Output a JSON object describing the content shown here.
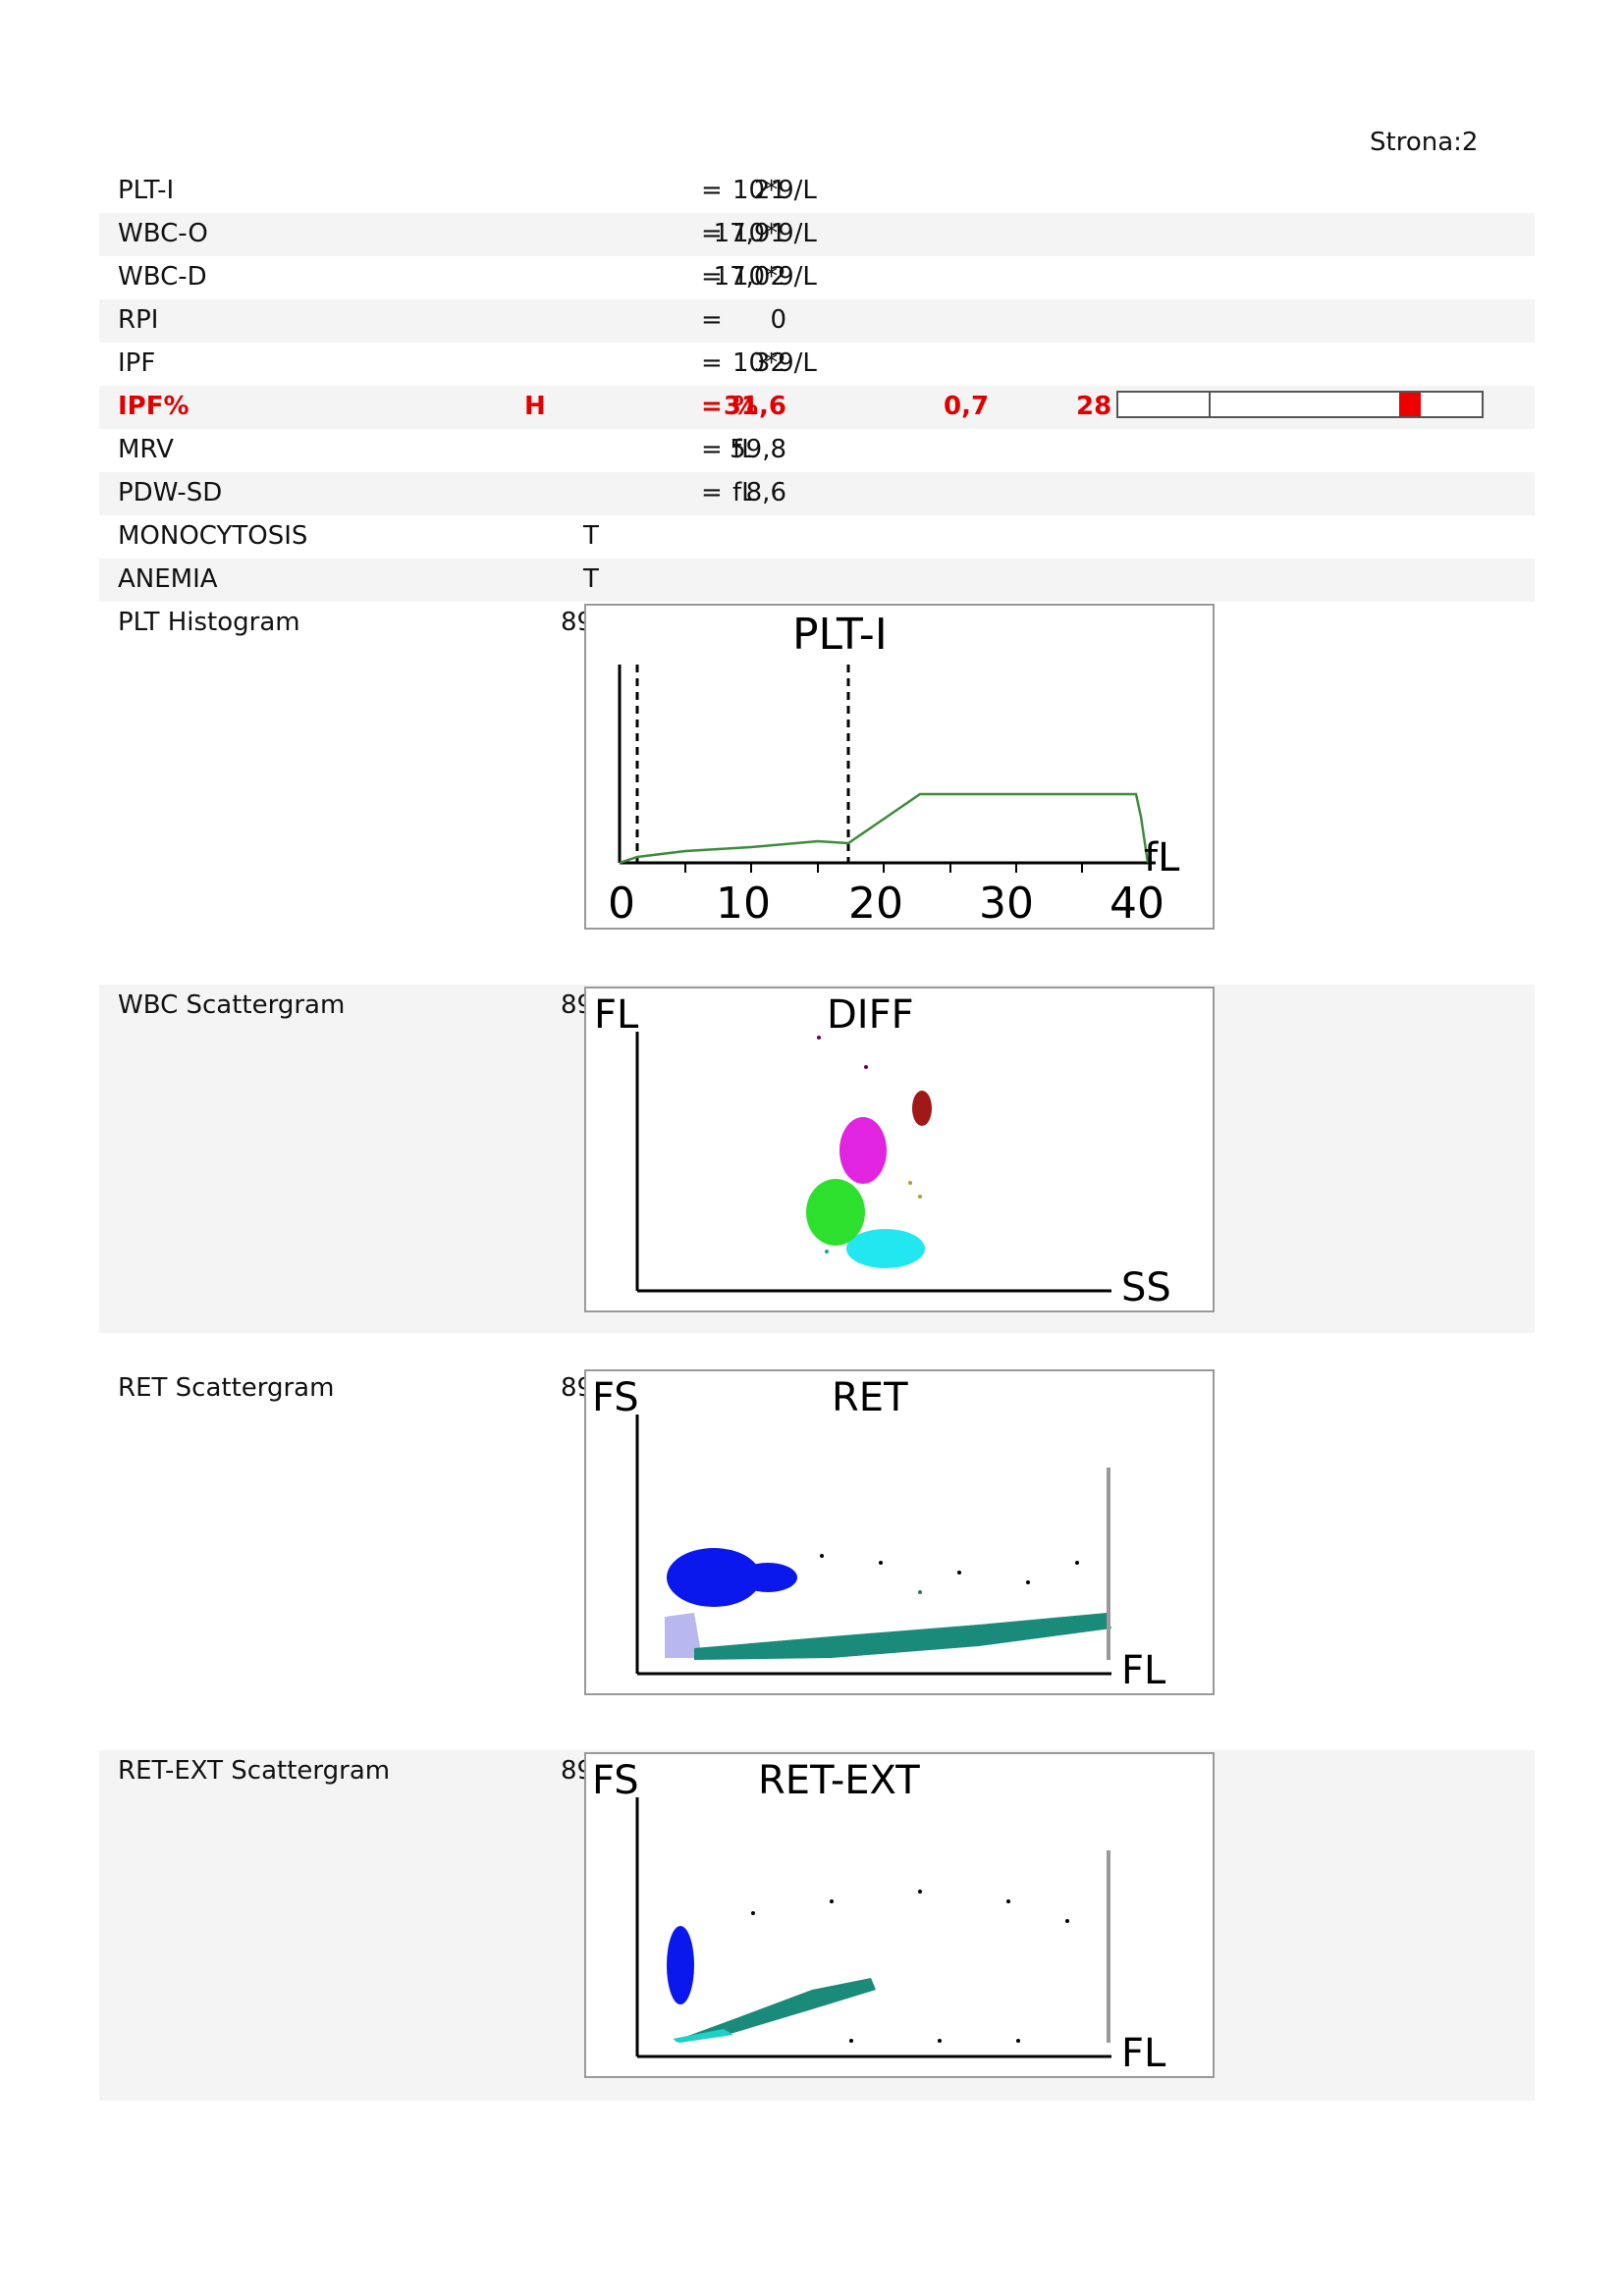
{
  "page_label": "Strona:2",
  "results": [
    {
      "name": "PLT-I",
      "flag": "",
      "value": "21",
      "eq": "=",
      "unit": "10*9/L",
      "low": "",
      "high": "",
      "abnormal": false
    },
    {
      "name": "WBC-O",
      "flag": "",
      "value": "17,91",
      "eq": "=",
      "unit": "10*9/L",
      "low": "",
      "high": "",
      "abnormal": false
    },
    {
      "name": "WBC-D",
      "flag": "",
      "value": "17,02",
      "eq": "=",
      "unit": "10*9/L",
      "low": "",
      "high": "",
      "abnormal": false
    },
    {
      "name": "RPI",
      "flag": "",
      "value": "0",
      "eq": "=",
      "unit": "",
      "low": "",
      "high": "",
      "abnormal": false
    },
    {
      "name": "IPF",
      "flag": "",
      "value": "32",
      "eq": "=",
      "unit": "10*9/L",
      "low": "",
      "high": "",
      "abnormal": false
    },
    {
      "name": "IPF%",
      "flag": "H",
      "value": "31,6",
      "eq": "=",
      "unit": "%",
      "low": "0,7",
      "high": "28",
      "abnormal": true
    },
    {
      "name": "MRV",
      "flag": "",
      "value": "59,8",
      "eq": "=",
      "unit": "fL",
      "low": "",
      "high": "",
      "abnormal": false
    },
    {
      "name": "PDW-SD",
      "flag": "",
      "value": "8,6",
      "eq": "=",
      "unit": "fL",
      "low": "",
      "high": "",
      "abnormal": false
    },
    {
      "name": "MONOCYTOSIS",
      "flag": "T",
      "value": "",
      "eq": "",
      "unit": "",
      "low": "",
      "high": "",
      "abnormal": false
    },
    {
      "name": "ANEMIA",
      "flag": "T",
      "value": "",
      "eq": "",
      "unit": "",
      "low": "",
      "high": "",
      "abnormal": false
    }
  ],
  "graphs": [
    {
      "label": "PLT Histogram",
      "number": "89",
      "title": "PLT-I",
      "y_axis_label": "",
      "x_axis_label": "fL",
      "x_ticks": [
        "0",
        "10",
        "20",
        "30",
        "40"
      ]
    },
    {
      "label": "WBC Scattergram",
      "number": "89",
      "title": "DIFF",
      "y_axis_label": "FL",
      "x_axis_label": "SS"
    },
    {
      "label": "RET Scattergram",
      "number": "89",
      "title": "RET",
      "y_axis_label": "FS",
      "x_axis_label": "FL"
    },
    {
      "label": "RET-EXT Scattergram",
      "number": "89",
      "title": "RET-EXT",
      "y_axis_label": "FS",
      "x_axis_label": "FL"
    }
  ],
  "colors": {
    "abnormal": "#e00000",
    "histogram_line": "#3c8c3c",
    "range_marker": "#ee0000"
  }
}
